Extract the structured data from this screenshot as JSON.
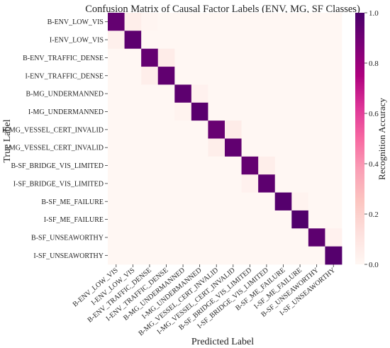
{
  "chart_data": {
    "type": "heatmap",
    "title": "Confusion Matrix of Causal Factor Labels (ENV, MG, SF Classes)",
    "xlabel": "Predicted Label",
    "ylabel": "True Label",
    "colorbar_label": "Recognition Accuracy",
    "colorbar_ticks": [
      "0.0",
      "0.2",
      "0.4",
      "0.6",
      "0.8",
      "1.0"
    ],
    "vmin": 0.0,
    "vmax": 1.0,
    "colormap": [
      "#fff7f3",
      "#fde0dd",
      "#fcc5c0",
      "#fa9fb5",
      "#f768a1",
      "#dd3497",
      "#ae017e",
      "#7a0177",
      "#49006a"
    ],
    "labels": [
      "B-ENV_LOW_VIS",
      "I-ENV_LOW_VIS",
      "B-ENV_TRAFFIC_DENSE",
      "I-ENV_TRAFFIC_DENSE",
      "B-MG_UNDERMANNED",
      "I-MG_UNDERMANNED",
      "B-MG_VESSEL_CERT_INVALID",
      "I-MG_VESSEL_CERT_INVALID",
      "B-SF_BRIDGE_VIS_LIMITED",
      "I-SF_BRIDGE_VIS_LIMITED",
      "B-SF_ME_FAILURE",
      "I-SF_ME_FAILURE",
      "B-SF_UNSEAWORTHY",
      "I-SF_UNSEAWORTHY"
    ],
    "matrix": [
      [
        0.93,
        0.05,
        0.01,
        0,
        0,
        0,
        0,
        0,
        0,
        0,
        0,
        0,
        0,
        0
      ],
      [
        0.04,
        0.95,
        0,
        0,
        0,
        0,
        0,
        0,
        0,
        0,
        0,
        0,
        0,
        0
      ],
      [
        0,
        0,
        0.93,
        0.06,
        0,
        0,
        0,
        0,
        0,
        0,
        0,
        0,
        0,
        0
      ],
      [
        0,
        0,
        0.05,
        0.94,
        0,
        0,
        0,
        0,
        0,
        0,
        0,
        0,
        0,
        0
      ],
      [
        0,
        0,
        0,
        0,
        0.95,
        0.03,
        0,
        0,
        0,
        0,
        0,
        0,
        0,
        0
      ],
      [
        0,
        0,
        0,
        0,
        0.02,
        0.96,
        0,
        0,
        0,
        0,
        0,
        0,
        0,
        0
      ],
      [
        0,
        0,
        0,
        0,
        0,
        0,
        0.92,
        0.06,
        0,
        0,
        0,
        0,
        0,
        0
      ],
      [
        0,
        0,
        0,
        0,
        0,
        0,
        0.05,
        0.94,
        0,
        0,
        0,
        0,
        0,
        0
      ],
      [
        0,
        0,
        0,
        0,
        0,
        0,
        0,
        0,
        0.93,
        0.05,
        0,
        0,
        0,
        0
      ],
      [
        0,
        0,
        0,
        0,
        0,
        0,
        0,
        0,
        0.03,
        0.95,
        0,
        0,
        0,
        0
      ],
      [
        0,
        0,
        0,
        0,
        0,
        0,
        0,
        0,
        0,
        0,
        0.97,
        0.02,
        0,
        0
      ],
      [
        0,
        0,
        0,
        0,
        0,
        0,
        0,
        0,
        0,
        0,
        0,
        0.98,
        0,
        0
      ],
      [
        0,
        0,
        0,
        0,
        0,
        0,
        0,
        0,
        0,
        0,
        0,
        0,
        0.95,
        0.03
      ],
      [
        0,
        0,
        0,
        0,
        0,
        0,
        0,
        0,
        0,
        0,
        0,
        0,
        0,
        0.97
      ]
    ]
  }
}
